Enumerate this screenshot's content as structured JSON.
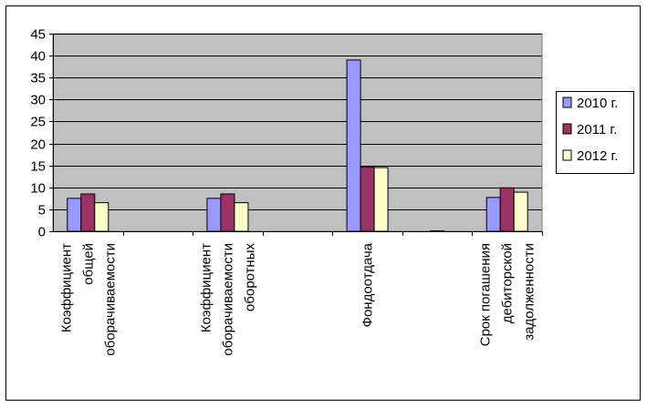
{
  "chart_data": {
    "type": "bar",
    "categories": [
      [
        "Коэффициент",
        "общей",
        "оборачиваемости"
      ],
      [],
      [
        "Коэффициент",
        "оборачиваемости",
        "оборотных"
      ],
      [],
      [
        "Фондоотдача"
      ],
      [],
      [
        "Срок погашения",
        "дебиторской",
        "задолженности"
      ]
    ],
    "series": [
      {
        "name": "2010 г.",
        "color": "#9999ff",
        "values": [
          7.5,
          null,
          7.5,
          null,
          39,
          null,
          7.7
        ]
      },
      {
        "name": "2011 г.",
        "color": "#993366",
        "values": [
          8.5,
          null,
          8.5,
          null,
          14.6,
          0.1,
          9.9
        ]
      },
      {
        "name": "2012 г.",
        "color": "#ffffcc",
        "values": [
          6.5,
          null,
          6.5,
          null,
          14.5,
          null,
          8.9
        ]
      }
    ],
    "ylim": [
      0,
      45
    ],
    "yticks": [
      0,
      5,
      10,
      15,
      20,
      25,
      30,
      35,
      40,
      45
    ],
    "grid": true,
    "plot_background": "#c0c0c0",
    "legend_position": "right"
  }
}
